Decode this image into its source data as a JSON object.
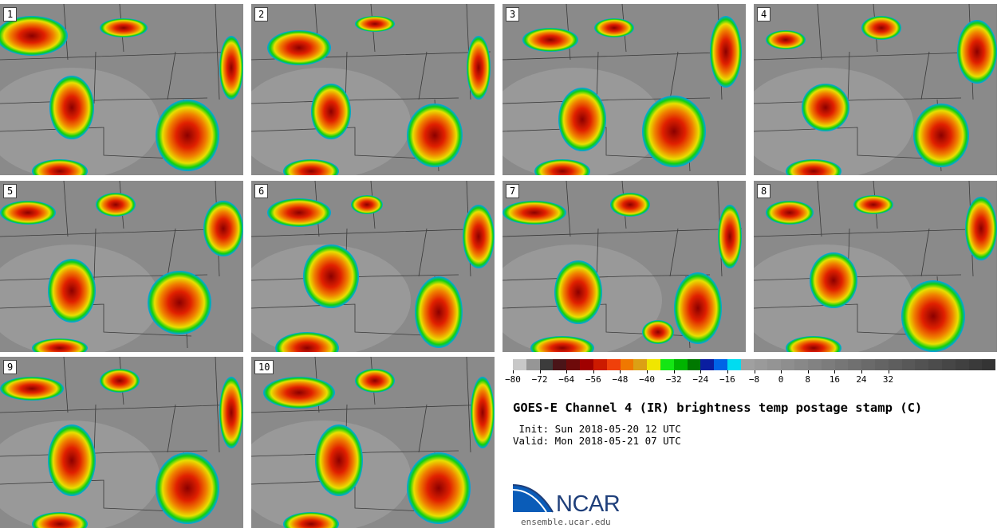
{
  "title": "GOES-E Channel 4 (IR) brightness temp postage stamp (C)",
  "init_line": " Init: Sun 2018-05-20 12 UTC",
  "valid_line": "Valid: Mon 2018-05-21 07 UTC",
  "logo": {
    "name": "NCAR",
    "url": "ensemble.ucar.edu"
  },
  "members": [
    "1",
    "2",
    "3",
    "4",
    "5",
    "6",
    "7",
    "8",
    "9",
    "10"
  ],
  "colorbar": {
    "ticks": [
      "−80",
      "−72",
      "−64",
      "−56",
      "−48",
      "−40",
      "−32",
      "−24",
      "−16",
      "−8",
      "0",
      "8",
      "16",
      "24",
      "32"
    ],
    "colors": [
      "#c8c8c8",
      "#969696",
      "#3c3c3c",
      "#4a1418",
      "#6e0a0a",
      "#a00000",
      "#cc1a00",
      "#f0400a",
      "#f07800",
      "#dca014",
      "#f0e600",
      "#14e614",
      "#00b400",
      "#007800",
      "#0a1ea0",
      "#0064e6",
      "#00dcf0",
      "#a0a0a0",
      "#9a9a9a",
      "#949494",
      "#8e8e8e",
      "#888888",
      "#828282",
      "#7c7c7c",
      "#767676",
      "#707070",
      "#6a6a6a",
      "#646464",
      "#5e5e5e",
      "#585858",
      "#525252",
      "#4c4c4c",
      "#464646",
      "#404040",
      "#3a3a3a",
      "#343434"
    ]
  }
}
